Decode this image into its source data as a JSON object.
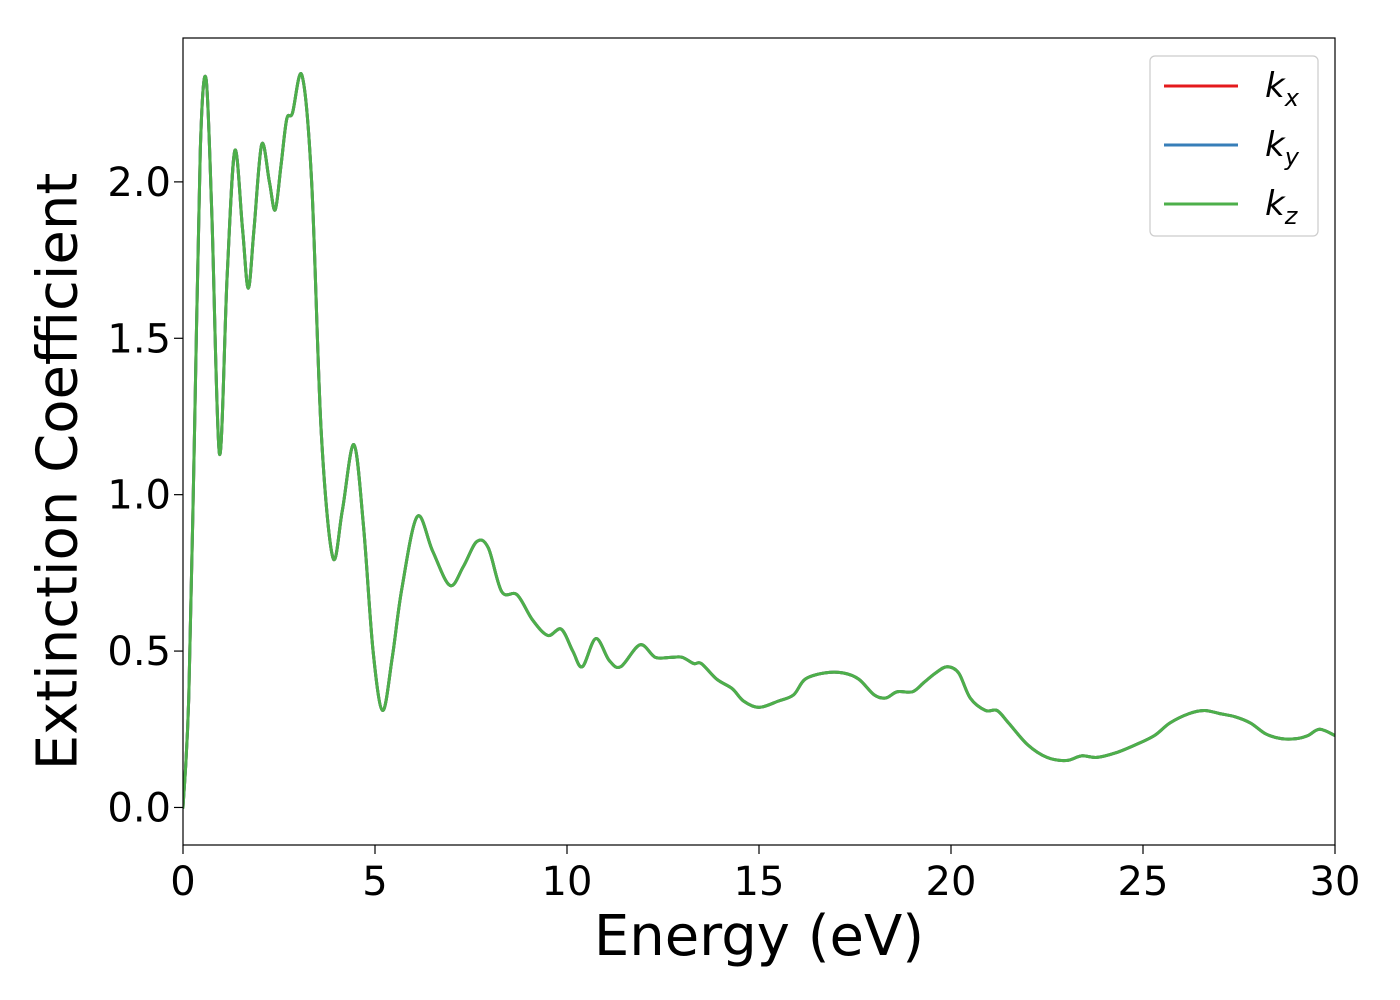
{
  "chart_data": {
    "type": "line",
    "xlabel": "Energy (eV)",
    "ylabel": "Extinction Coefficient",
    "xlim": [
      0,
      30
    ],
    "ylim": [
      -0.12,
      2.46
    ],
    "xticks": [
      0,
      5,
      10,
      15,
      20,
      25,
      30
    ],
    "yticks": [
      0.0,
      0.5,
      1.0,
      1.5,
      2.0
    ],
    "xtick_labels": [
      "0",
      "5",
      "10",
      "15",
      "20",
      "25",
      "30"
    ],
    "ytick_labels": [
      "0.0",
      "0.5",
      "1.0",
      "1.5",
      "2.0"
    ],
    "grid": false,
    "legend_position": "top-right",
    "x": [
      0,
      0.15,
      0.3,
      0.45,
      0.6,
      0.75,
      0.95,
      1.15,
      1.35,
      1.55,
      1.7,
      1.85,
      2.05,
      2.25,
      2.4,
      2.55,
      2.7,
      2.85,
      3.1,
      3.35,
      3.6,
      3.9,
      4.15,
      4.45,
      4.7,
      4.95,
      5.2,
      5.45,
      5.7,
      6.1,
      6.5,
      6.95,
      7.3,
      7.65,
      7.95,
      8.3,
      8.7,
      9.1,
      9.5,
      9.85,
      10.15,
      10.4,
      10.75,
      11.1,
      11.4,
      11.9,
      12.3,
      12.7,
      13.0,
      13.3,
      13.5,
      13.9,
      14.3,
      14.6,
      15.0,
      15.5,
      15.9,
      16.2,
      16.7,
      17.2,
      17.6,
      18.0,
      18.3,
      18.6,
      19.0,
      19.3,
      19.6,
      19.9,
      20.2,
      20.5,
      20.9,
      21.2,
      21.5,
      22.0,
      22.5,
      23.0,
      23.4,
      23.8,
      24.3,
      24.8,
      25.3,
      25.7,
      26.2,
      26.6,
      27.0,
      27.4,
      27.8,
      28.2,
      28.6,
      29.0,
      29.3,
      29.6,
      30.0
    ],
    "series": [
      {
        "name": "k_x",
        "label_base": "k",
        "label_sub": "x",
        "color": "#e41a1c",
        "values": [
          0.0,
          0.35,
          1.2,
          2.1,
          2.33,
          1.9,
          1.13,
          1.7,
          2.1,
          1.85,
          1.66,
          1.85,
          2.12,
          2.0,
          1.91,
          2.05,
          2.2,
          2.22,
          2.34,
          2.0,
          1.2,
          0.8,
          0.95,
          1.16,
          0.9,
          0.5,
          0.31,
          0.48,
          0.7,
          0.93,
          0.82,
          0.71,
          0.77,
          0.85,
          0.83,
          0.69,
          0.68,
          0.6,
          0.55,
          0.57,
          0.5,
          0.45,
          0.54,
          0.47,
          0.45,
          0.52,
          0.48,
          0.48,
          0.48,
          0.46,
          0.46,
          0.41,
          0.38,
          0.34,
          0.32,
          0.34,
          0.36,
          0.41,
          0.43,
          0.43,
          0.41,
          0.36,
          0.35,
          0.37,
          0.37,
          0.4,
          0.43,
          0.45,
          0.43,
          0.35,
          0.31,
          0.31,
          0.27,
          0.2,
          0.16,
          0.15,
          0.165,
          0.16,
          0.175,
          0.2,
          0.23,
          0.27,
          0.3,
          0.31,
          0.3,
          0.29,
          0.27,
          0.235,
          0.22,
          0.22,
          0.23,
          0.25,
          0.23
        ]
      },
      {
        "name": "k_y",
        "label_base": "k",
        "label_sub": "y",
        "color": "#377eb8",
        "values": [
          0.0,
          0.35,
          1.2,
          2.1,
          2.33,
          1.9,
          1.13,
          1.7,
          2.1,
          1.85,
          1.66,
          1.85,
          2.12,
          2.0,
          1.91,
          2.05,
          2.2,
          2.22,
          2.34,
          2.0,
          1.2,
          0.8,
          0.95,
          1.16,
          0.9,
          0.5,
          0.31,
          0.48,
          0.7,
          0.93,
          0.82,
          0.71,
          0.77,
          0.85,
          0.83,
          0.69,
          0.68,
          0.6,
          0.55,
          0.57,
          0.5,
          0.45,
          0.54,
          0.47,
          0.45,
          0.52,
          0.48,
          0.48,
          0.48,
          0.46,
          0.46,
          0.41,
          0.38,
          0.34,
          0.32,
          0.34,
          0.36,
          0.41,
          0.43,
          0.43,
          0.41,
          0.36,
          0.35,
          0.37,
          0.37,
          0.4,
          0.43,
          0.45,
          0.43,
          0.35,
          0.31,
          0.31,
          0.27,
          0.2,
          0.16,
          0.15,
          0.165,
          0.16,
          0.175,
          0.2,
          0.23,
          0.27,
          0.3,
          0.31,
          0.3,
          0.29,
          0.27,
          0.235,
          0.22,
          0.22,
          0.23,
          0.25,
          0.23
        ]
      },
      {
        "name": "k_z",
        "label_base": "k",
        "label_sub": "z",
        "color": "#4daf4a",
        "values": [
          0.0,
          0.35,
          1.2,
          2.1,
          2.33,
          1.9,
          1.13,
          1.7,
          2.1,
          1.85,
          1.66,
          1.85,
          2.12,
          2.0,
          1.91,
          2.05,
          2.2,
          2.22,
          2.34,
          2.0,
          1.2,
          0.8,
          0.95,
          1.16,
          0.9,
          0.5,
          0.31,
          0.48,
          0.7,
          0.93,
          0.82,
          0.71,
          0.77,
          0.85,
          0.83,
          0.69,
          0.68,
          0.6,
          0.55,
          0.57,
          0.5,
          0.45,
          0.54,
          0.47,
          0.45,
          0.52,
          0.48,
          0.48,
          0.48,
          0.46,
          0.46,
          0.41,
          0.38,
          0.34,
          0.32,
          0.34,
          0.36,
          0.41,
          0.43,
          0.43,
          0.41,
          0.36,
          0.35,
          0.37,
          0.37,
          0.4,
          0.43,
          0.45,
          0.43,
          0.35,
          0.31,
          0.31,
          0.27,
          0.2,
          0.16,
          0.15,
          0.165,
          0.16,
          0.175,
          0.2,
          0.23,
          0.27,
          0.3,
          0.31,
          0.3,
          0.29,
          0.27,
          0.235,
          0.22,
          0.22,
          0.23,
          0.25,
          0.23
        ]
      }
    ]
  }
}
